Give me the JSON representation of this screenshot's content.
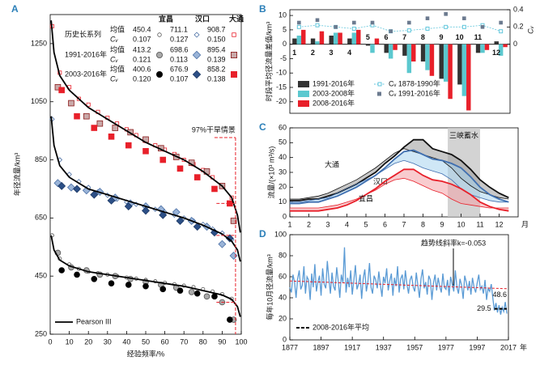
{
  "chart_data": [
    {
      "type": "scatter",
      "panel": "A",
      "xlabel": "经验频率/%",
      "ylabel": "年径流量/km³",
      "xlim": [
        0,
        100
      ],
      "ylim": [
        250,
        1350
      ],
      "xticks": [
        0,
        10,
        20,
        30,
        40,
        50,
        60,
        70,
        80,
        90,
        100
      ],
      "yticks": [
        250,
        450,
        650,
        850,
        1050,
        1250
      ],
      "legend_table": {
        "stations": [
          "宜昌",
          "汉口",
          "大通"
        ],
        "periods": [
          "历史长系列",
          "1991-2016年",
          "2003-2016年"
        ],
        "mean_label": "均值",
        "cv_label": "Cᵥ",
        "means": [
          [
            450.4,
            711.1,
            908.7
          ],
          [
            413.2,
            698.6,
            895.4
          ],
          [
            400.6,
            676.9,
            858.2
          ]
        ],
        "cvs": [
          [
            "0.107",
            "0.127",
            "0.150"
          ],
          [
            "0.121",
            "0.113",
            "0.139"
          ],
          [
            "0.120",
            "0.107",
            "0.138"
          ]
        ]
      },
      "series": [
        {
          "marker": "circle",
          "color": "#555555",
          "fill": "#ffffff",
          "x": [
            1,
            5,
            10,
            15,
            20,
            25,
            30,
            35,
            40,
            45,
            50,
            55,
            60,
            65,
            70,
            75,
            80,
            85,
            90,
            95
          ],
          "values": [
            590,
            510,
            490,
            475,
            465,
            460,
            455,
            450,
            445,
            441,
            437,
            432,
            427,
            422,
            417,
            412,
            405,
            397,
            388,
            372
          ]
        },
        {
          "marker": "circle",
          "color": "#555555",
          "fill": "#a9a9a9",
          "x": [
            4,
            11,
            19,
            26,
            34,
            42,
            50,
            58,
            66,
            74,
            82,
            90,
            96
          ],
          "values": [
            530,
            480,
            470,
            455,
            450,
            440,
            430,
            420,
            410,
            395,
            380,
            360,
            300
          ]
        },
        {
          "marker": "circle",
          "color": "#000000",
          "fill": "#000000",
          "x": [
            6,
            14,
            23,
            32,
            41,
            50,
            59,
            68,
            77,
            86,
            94
          ],
          "values": [
            470,
            455,
            440,
            425,
            420,
            415,
            405,
            400,
            390,
            380,
            300
          ]
        },
        {
          "marker": "diamond",
          "color": "#4a6fa5",
          "fill": "#ffffff",
          "x": [
            1,
            5,
            10,
            15,
            20,
            25,
            30,
            35,
            40,
            45,
            50,
            55,
            60,
            65,
            70,
            75,
            80,
            85,
            90,
            95
          ],
          "values": [
            990,
            850,
            800,
            775,
            755,
            740,
            728,
            715,
            705,
            697,
            690,
            680,
            670,
            660,
            650,
            640,
            628,
            612,
            598,
            575
          ]
        },
        {
          "marker": "diamond",
          "color": "#4a6fa5",
          "fill": "#9ab4d8",
          "x": [
            4,
            11,
            19,
            26,
            34,
            42,
            50,
            58,
            66,
            74,
            82,
            90,
            96
          ],
          "values": [
            770,
            755,
            745,
            740,
            720,
            700,
            690,
            680,
            670,
            640,
            620,
            560,
            520
          ]
        },
        {
          "marker": "diamond",
          "color": "#1e3a66",
          "fill": "#2c4f86",
          "x": [
            6,
            14,
            23,
            32,
            41,
            50,
            59,
            68,
            77,
            86,
            94
          ],
          "values": [
            760,
            750,
            730,
            710,
            690,
            675,
            660,
            640,
            620,
            600,
            580
          ]
        },
        {
          "marker": "square",
          "color": "#e8202a",
          "fill": "#ffffff",
          "x": [
            1,
            5,
            10,
            15,
            20,
            25,
            30,
            35,
            40,
            45,
            50,
            55,
            60,
            65,
            70,
            75,
            80,
            85,
            90,
            95
          ],
          "values": [
            1310,
            1150,
            1100,
            1060,
            1040,
            1015,
            995,
            975,
            955,
            935,
            915,
            900,
            885,
            870,
            850,
            835,
            815,
            790,
            760,
            720
          ]
        },
        {
          "marker": "square",
          "color": "#8b1a1a",
          "fill": "#c9a9a9",
          "x": [
            4,
            11,
            19,
            26,
            34,
            42,
            50,
            58,
            66,
            74,
            82,
            90,
            96
          ],
          "values": [
            1100,
            1045,
            1000,
            975,
            960,
            945,
            920,
            890,
            860,
            840,
            810,
            760,
            640
          ]
        },
        {
          "marker": "square",
          "color": "#e8202a",
          "fill": "#e8202a",
          "x": [
            6,
            14,
            23,
            32,
            41,
            50,
            59,
            68,
            77,
            86,
            94
          ],
          "values": [
            1090,
            1000,
            960,
            930,
            900,
            880,
            850,
            820,
            790,
            750,
            700
          ]
        }
      ],
      "curves": [
        {
          "x": [
            0.5,
            2,
            5,
            10,
            20,
            30,
            40,
            50,
            60,
            70,
            80,
            90,
            95,
            98,
            99.5
          ],
          "values": [
            590,
            540,
            505,
            485,
            465,
            455,
            445,
            435,
            425,
            415,
            400,
            385,
            370,
            345,
            310
          ]
        },
        {
          "x": [
            0.5,
            2,
            5,
            10,
            20,
            30,
            40,
            50,
            60,
            70,
            80,
            90,
            95,
            98,
            99.5
          ],
          "values": [
            1000,
            900,
            830,
            790,
            750,
            730,
            710,
            690,
            670,
            650,
            625,
            595,
            570,
            540,
            500
          ]
        },
        {
          "x": [
            0.5,
            2,
            5,
            10,
            20,
            30,
            40,
            50,
            60,
            70,
            80,
            90,
            95,
            98,
            99.5
          ],
          "values": [
            1330,
            1220,
            1140,
            1090,
            1030,
            990,
            950,
            910,
            880,
            850,
            810,
            760,
            720,
            660,
            600
          ]
        }
      ],
      "curve_label": "Pearson III",
      "curve_color": "#000000",
      "drought": {
        "label": "97%干旱情景",
        "x": 97,
        "levels": [
          360,
          590,
          700
        ],
        "color": "#e8202a"
      }
    },
    {
      "type": "bar",
      "panel": "B",
      "ylabel": "时段平均径流量差值/km³",
      "y2label": "Cᵥ",
      "categories": [
        "1",
        "2",
        "3",
        "4",
        "5",
        "6",
        "7",
        "8",
        "9",
        "10",
        "11",
        "12"
      ],
      "ylim": [
        -24,
        12
      ],
      "yticks": [
        -20,
        -15,
        -10,
        -5,
        0,
        5,
        10
      ],
      "y2lim": [
        -0.8,
        0.4
      ],
      "y2ticks": [
        0,
        0.2,
        0.4
      ],
      "series": [
        {
          "name": "1991-2016年",
          "color": "#333333",
          "values": [
            2,
            2,
            3,
            2,
            -0.5,
            -3,
            -4,
            -6,
            -12,
            -14,
            -3,
            1
          ]
        },
        {
          "name": "2003-2008年",
          "color": "#5bc8cf",
          "values": [
            3,
            1,
            4,
            4,
            -3,
            -5,
            -10,
            -9,
            -13,
            -18,
            -3,
            -4
          ]
        },
        {
          "name": "2008-2016年",
          "color": "#e8202a",
          "values": [
            5,
            4.5,
            4,
            5,
            2,
            -2,
            -6,
            -11,
            -19,
            -23,
            -2,
            -1
          ]
        },
        {
          "name": "Cᵥ 1878-1990年",
          "color": "#62c6dc",
          "axis": "y2",
          "kind": "line",
          "values": [
            0.2,
            0.22,
            0.2,
            0.18,
            0.22,
            0.15,
            0.16,
            0.18,
            0.2,
            0.2,
            0.22,
            0.15
          ]
        },
        {
          "name": "Cᵥ 1991-2016年",
          "color": "#6b7a8f",
          "axis": "y2",
          "kind": "points",
          "values": [
            0.25,
            0.28,
            0.2,
            0.25,
            0.25,
            0.15,
            0.25,
            0.3,
            0.35,
            0.3,
            0.2,
            0.25
          ]
        }
      ]
    },
    {
      "type": "area",
      "panel": "C",
      "ylabel": "流量/(×10³ m³/s)",
      "xlabel": "月",
      "xlim": [
        1,
        13
      ],
      "xticks": [
        1,
        2,
        3,
        4,
        5,
        6,
        7,
        8,
        9,
        10,
        11,
        12
      ],
      "ylim": [
        0,
        60
      ],
      "yticks": [
        0,
        10,
        20,
        30,
        40,
        50,
        60
      ],
      "x": [
        1,
        1.5,
        2,
        2.5,
        3,
        3.5,
        4,
        4.5,
        5,
        5.5,
        6,
        6.5,
        7,
        7.5,
        8,
        8.5,
        9,
        9.5,
        10,
        10.5,
        11,
        11.5,
        12,
        12.5
      ],
      "series": [
        {
          "name": "大通",
          "color": "#111111",
          "fill": "#9a9a9a",
          "values": [
            11,
            11,
            12,
            12,
            14,
            16,
            19,
            22,
            26,
            30,
            36,
            41,
            47,
            52,
            52,
            46,
            44,
            42,
            38,
            32,
            25,
            20,
            16,
            13
          ],
          "recent_values": [
            12,
            12,
            13,
            14,
            16,
            19,
            22,
            25,
            29,
            33,
            38,
            43,
            46,
            44,
            42,
            40,
            38,
            33,
            26,
            21,
            17,
            15,
            13,
            12
          ]
        },
        {
          "name": "汉口",
          "color": "#3f6fb0",
          "fill": "#a8d4ee",
          "values": [
            9,
            9,
            10,
            10,
            12,
            14,
            17,
            20,
            24,
            28,
            33,
            39,
            44,
            45,
            42,
            39,
            38,
            36,
            33,
            27,
            20,
            15,
            12,
            10
          ],
          "recent_values": [
            10,
            10,
            11,
            12,
            13,
            16,
            19,
            22,
            25,
            28,
            32,
            36,
            38,
            36,
            33,
            31,
            29,
            25,
            19,
            15,
            13,
            11,
            10,
            10
          ]
        },
        {
          "name": "宜昌",
          "color": "#e8202a",
          "fill": "#f3a3a8",
          "values": [
            4,
            4,
            4,
            4,
            5,
            6,
            8,
            11,
            15,
            19,
            24,
            28,
            32,
            32,
            28,
            25,
            24,
            22,
            19,
            15,
            10,
            7,
            5,
            4
          ],
          "recent_values": [
            6,
            6,
            6,
            6,
            7,
            8,
            10,
            12,
            15,
            18,
            22,
            25,
            26,
            24,
            21,
            18,
            16,
            12,
            9,
            8,
            7,
            6,
            6,
            6
          ]
        }
      ],
      "band": {
        "label": "三峡蓄水",
        "x": [
          9.3,
          11
        ],
        "color": "#c8c8c8"
      }
    },
    {
      "type": "line",
      "panel": "D",
      "ylabel": "每年10月径流量/km³",
      "xlabel": "年",
      "xlim": [
        1877,
        2017
      ],
      "xticks": [
        1877,
        1897,
        1917,
        1937,
        1957,
        1977,
        1997,
        2017
      ],
      "ylim": [
        0,
        100
      ],
      "yticks": [
        0,
        20,
        40,
        60,
        80,
        100
      ],
      "color": "#5b9bd5",
      "x": [
        1877,
        1878,
        1879,
        1880,
        1881,
        1882,
        1883,
        1884,
        1885,
        1886,
        1887,
        1888,
        1889,
        1890,
        1891,
        1892,
        1893,
        1894,
        1895,
        1896,
        1897,
        1898,
        1899,
        1900,
        1901,
        1902,
        1903,
        1904,
        1905,
        1906,
        1907,
        1908,
        1909,
        1910,
        1911,
        1912,
        1913,
        1914,
        1915,
        1916,
        1917,
        1918,
        1919,
        1920,
        1921,
        1922,
        1923,
        1924,
        1925,
        1926,
        1927,
        1928,
        1929,
        1930,
        1931,
        1932,
        1933,
        1934,
        1935,
        1936,
        1937,
        1938,
        1939,
        1940,
        1941,
        1942,
        1943,
        1944,
        1945,
        1946,
        1947,
        1948,
        1949,
        1950,
        1951,
        1952,
        1953,
        1954,
        1955,
        1956,
        1957,
        1958,
        1959,
        1960,
        1961,
        1962,
        1963,
        1964,
        1965,
        1966,
        1967,
        1968,
        1969,
        1970,
        1971,
        1972,
        1973,
        1974,
        1975,
        1976,
        1977,
        1978,
        1979,
        1980,
        1981,
        1982,
        1983,
        1984,
        1985,
        1986,
        1987,
        1988,
        1989,
        1990,
        1991,
        1992,
        1993,
        1994,
        1995,
        1996,
        1997,
        1998,
        1999,
        2000,
        2001,
        2002,
        2003,
        2004,
        2005,
        2006,
        2007,
        2008,
        2009,
        2010,
        2011,
        2012,
        2013,
        2014,
        2015,
        2016
      ],
      "values": [
        50,
        45,
        62,
        55,
        40,
        58,
        66,
        48,
        52,
        70,
        44,
        60,
        57,
        38,
        63,
        50,
        72,
        46,
        55,
        61,
        42,
        68,
        53,
        49,
        75,
        58,
        44,
        64,
        51,
        47,
        69,
        56,
        40,
        62,
        54,
        88,
        45,
        59,
        50,
        66,
        43,
        57,
        71,
        48,
        53,
        62,
        39,
        58,
        67,
        46,
        55,
        73,
        50,
        44,
        61,
        57,
        49,
        65,
        52,
        41,
        60,
        54,
        68,
        47,
        56,
        63,
        42,
        59,
        51,
        70,
        45,
        58,
        62,
        48,
        66,
        53,
        44,
        57,
        61,
        50,
        46,
        64,
        52,
        40,
        58,
        67,
        49,
        55,
        43,
        61,
        57,
        38,
        54,
        62,
        47,
        59,
        51,
        45,
        63,
        50,
        48,
        57,
        42,
        60,
        53,
        46,
        66,
        50,
        44,
        58,
        52,
        39,
        61,
        55,
        47,
        56,
        43,
        59,
        50,
        45,
        54,
        62,
        48,
        51,
        44,
        57,
        38,
        49,
        46,
        53,
        40,
        28,
        35,
        26,
        33,
        24,
        31,
        27,
        36,
        25
      ],
      "trend": {
        "label": "趋势线斜率k=-0.053",
        "x": [
          1877,
          2016
        ],
        "values": [
          56,
          48.6
        ],
        "color": "#e8202a"
      },
      "mean": {
        "name": "2008-2016年平均",
        "x": [
          2008,
          2016
        ],
        "value": 29.5,
        "color": "#000000"
      }
    }
  ]
}
